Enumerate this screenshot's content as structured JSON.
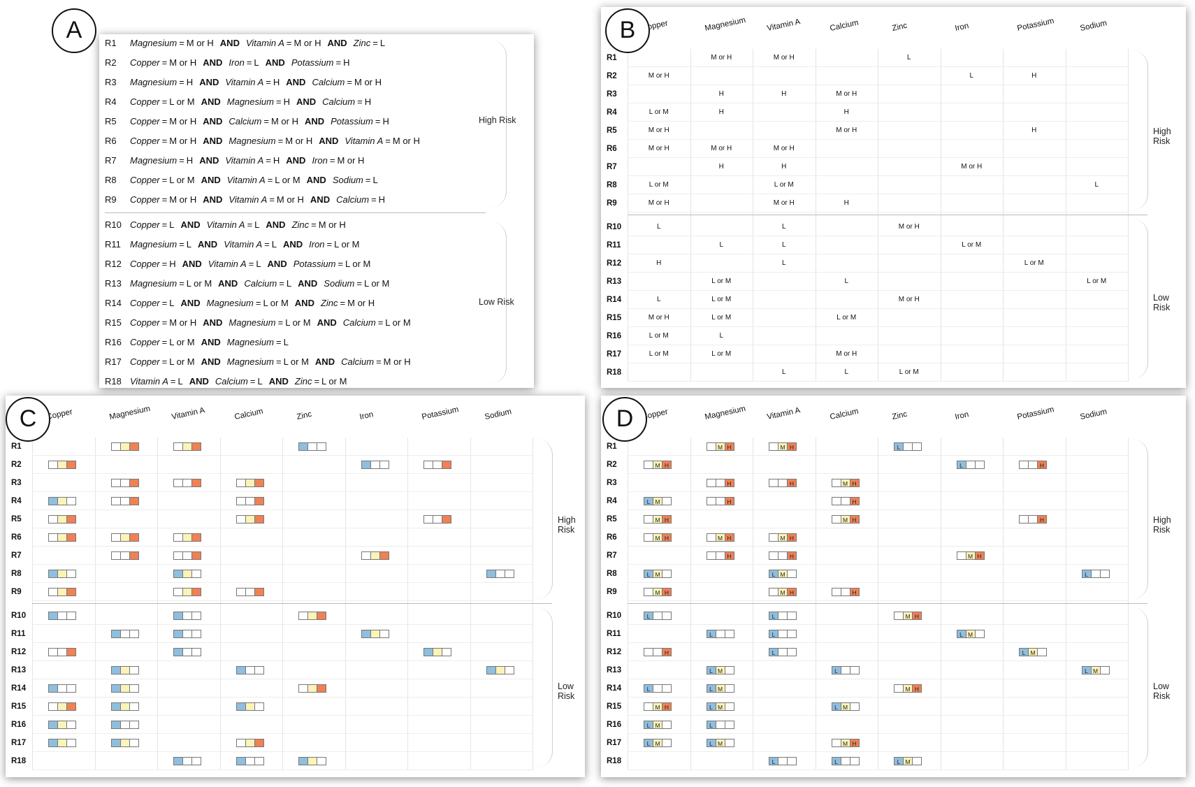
{
  "labels": {
    "A": "A",
    "B": "B",
    "C": "C",
    "D": "D"
  },
  "groups": {
    "high": "High Risk",
    "low": "Low Risk"
  },
  "and_word": "AND",
  "eq": "=",
  "features": [
    "Copper",
    "Magnesium",
    "Vitamin A",
    "Calcium",
    "Zinc",
    "Iron",
    "Potassium",
    "Sodium"
  ],
  "colors": {
    "L": "#8fbedf",
    "M": "#fbf3b8",
    "H": "#ef8155"
  },
  "rules": [
    {
      "id": "R1",
      "group": "high",
      "conds": [
        [
          "Magnesium",
          "M or H"
        ],
        [
          "Vitamin A",
          "M or H"
        ],
        [
          "Zinc",
          "L"
        ]
      ]
    },
    {
      "id": "R2",
      "group": "high",
      "conds": [
        [
          "Copper",
          "M or H"
        ],
        [
          "Iron",
          "L"
        ],
        [
          "Potassium",
          "H"
        ]
      ]
    },
    {
      "id": "R3",
      "group": "high",
      "conds": [
        [
          "Magnesium",
          "H"
        ],
        [
          "Vitamin A",
          "H"
        ],
        [
          "Calcium",
          "M or H"
        ]
      ]
    },
    {
      "id": "R4",
      "group": "high",
      "conds": [
        [
          "Copper",
          "L or M"
        ],
        [
          "Magnesium",
          "H"
        ],
        [
          "Calcium",
          "H"
        ]
      ]
    },
    {
      "id": "R5",
      "group": "high",
      "conds": [
        [
          "Copper",
          "M or H"
        ],
        [
          "Calcium",
          "M or H"
        ],
        [
          "Potassium",
          "H"
        ]
      ]
    },
    {
      "id": "R6",
      "group": "high",
      "conds": [
        [
          "Copper",
          "M or H"
        ],
        [
          "Magnesium",
          "M or H"
        ],
        [
          "Vitamin A",
          "M or H"
        ]
      ]
    },
    {
      "id": "R7",
      "group": "high",
      "conds": [
        [
          "Magnesium",
          "H"
        ],
        [
          "Vitamin A",
          "H"
        ],
        [
          "Iron",
          "M or H"
        ]
      ]
    },
    {
      "id": "R8",
      "group": "high",
      "conds": [
        [
          "Copper",
          "L or M"
        ],
        [
          "Vitamin A",
          "L or M"
        ],
        [
          "Sodium",
          "L"
        ]
      ]
    },
    {
      "id": "R9",
      "group": "high",
      "conds": [
        [
          "Copper",
          "M or H"
        ],
        [
          "Vitamin A",
          "M or H"
        ],
        [
          "Calcium",
          "H"
        ]
      ]
    },
    {
      "id": "R10",
      "group": "low",
      "conds": [
        [
          "Copper",
          "L"
        ],
        [
          "Vitamin A",
          "L"
        ],
        [
          "Zinc",
          "M or H"
        ]
      ]
    },
    {
      "id": "R11",
      "group": "low",
      "conds": [
        [
          "Magnesium",
          "L"
        ],
        [
          "Vitamin A",
          "L"
        ],
        [
          "Iron",
          "L or M"
        ]
      ]
    },
    {
      "id": "R12",
      "group": "low",
      "conds": [
        [
          "Copper",
          "H"
        ],
        [
          "Vitamin A",
          "L"
        ],
        [
          "Potassium",
          "L or M"
        ]
      ]
    },
    {
      "id": "R13",
      "group": "low",
      "conds": [
        [
          "Magnesium",
          "L or M"
        ],
        [
          "Calcium",
          "L"
        ],
        [
          "Sodium",
          "L or M"
        ]
      ]
    },
    {
      "id": "R14",
      "group": "low",
      "conds": [
        [
          "Copper",
          "L"
        ],
        [
          "Magnesium",
          "L or M"
        ],
        [
          "Zinc",
          "M or H"
        ]
      ]
    },
    {
      "id": "R15",
      "group": "low",
      "conds": [
        [
          "Copper",
          "M or H"
        ],
        [
          "Magnesium",
          "L or M"
        ],
        [
          "Calcium",
          "L or M"
        ]
      ]
    },
    {
      "id": "R16",
      "group": "low",
      "conds": [
        [
          "Copper",
          "L or M"
        ],
        [
          "Magnesium",
          "L"
        ]
      ]
    },
    {
      "id": "R17",
      "group": "low",
      "conds": [
        [
          "Copper",
          "L or M"
        ],
        [
          "Magnesium",
          "L or M"
        ],
        [
          "Calcium",
          "M or H"
        ]
      ]
    },
    {
      "id": "R18",
      "group": "low",
      "conds": [
        [
          "Vitamin A",
          "L"
        ],
        [
          "Calcium",
          "L"
        ],
        [
          "Zinc",
          "L or M"
        ]
      ]
    }
  ]
}
